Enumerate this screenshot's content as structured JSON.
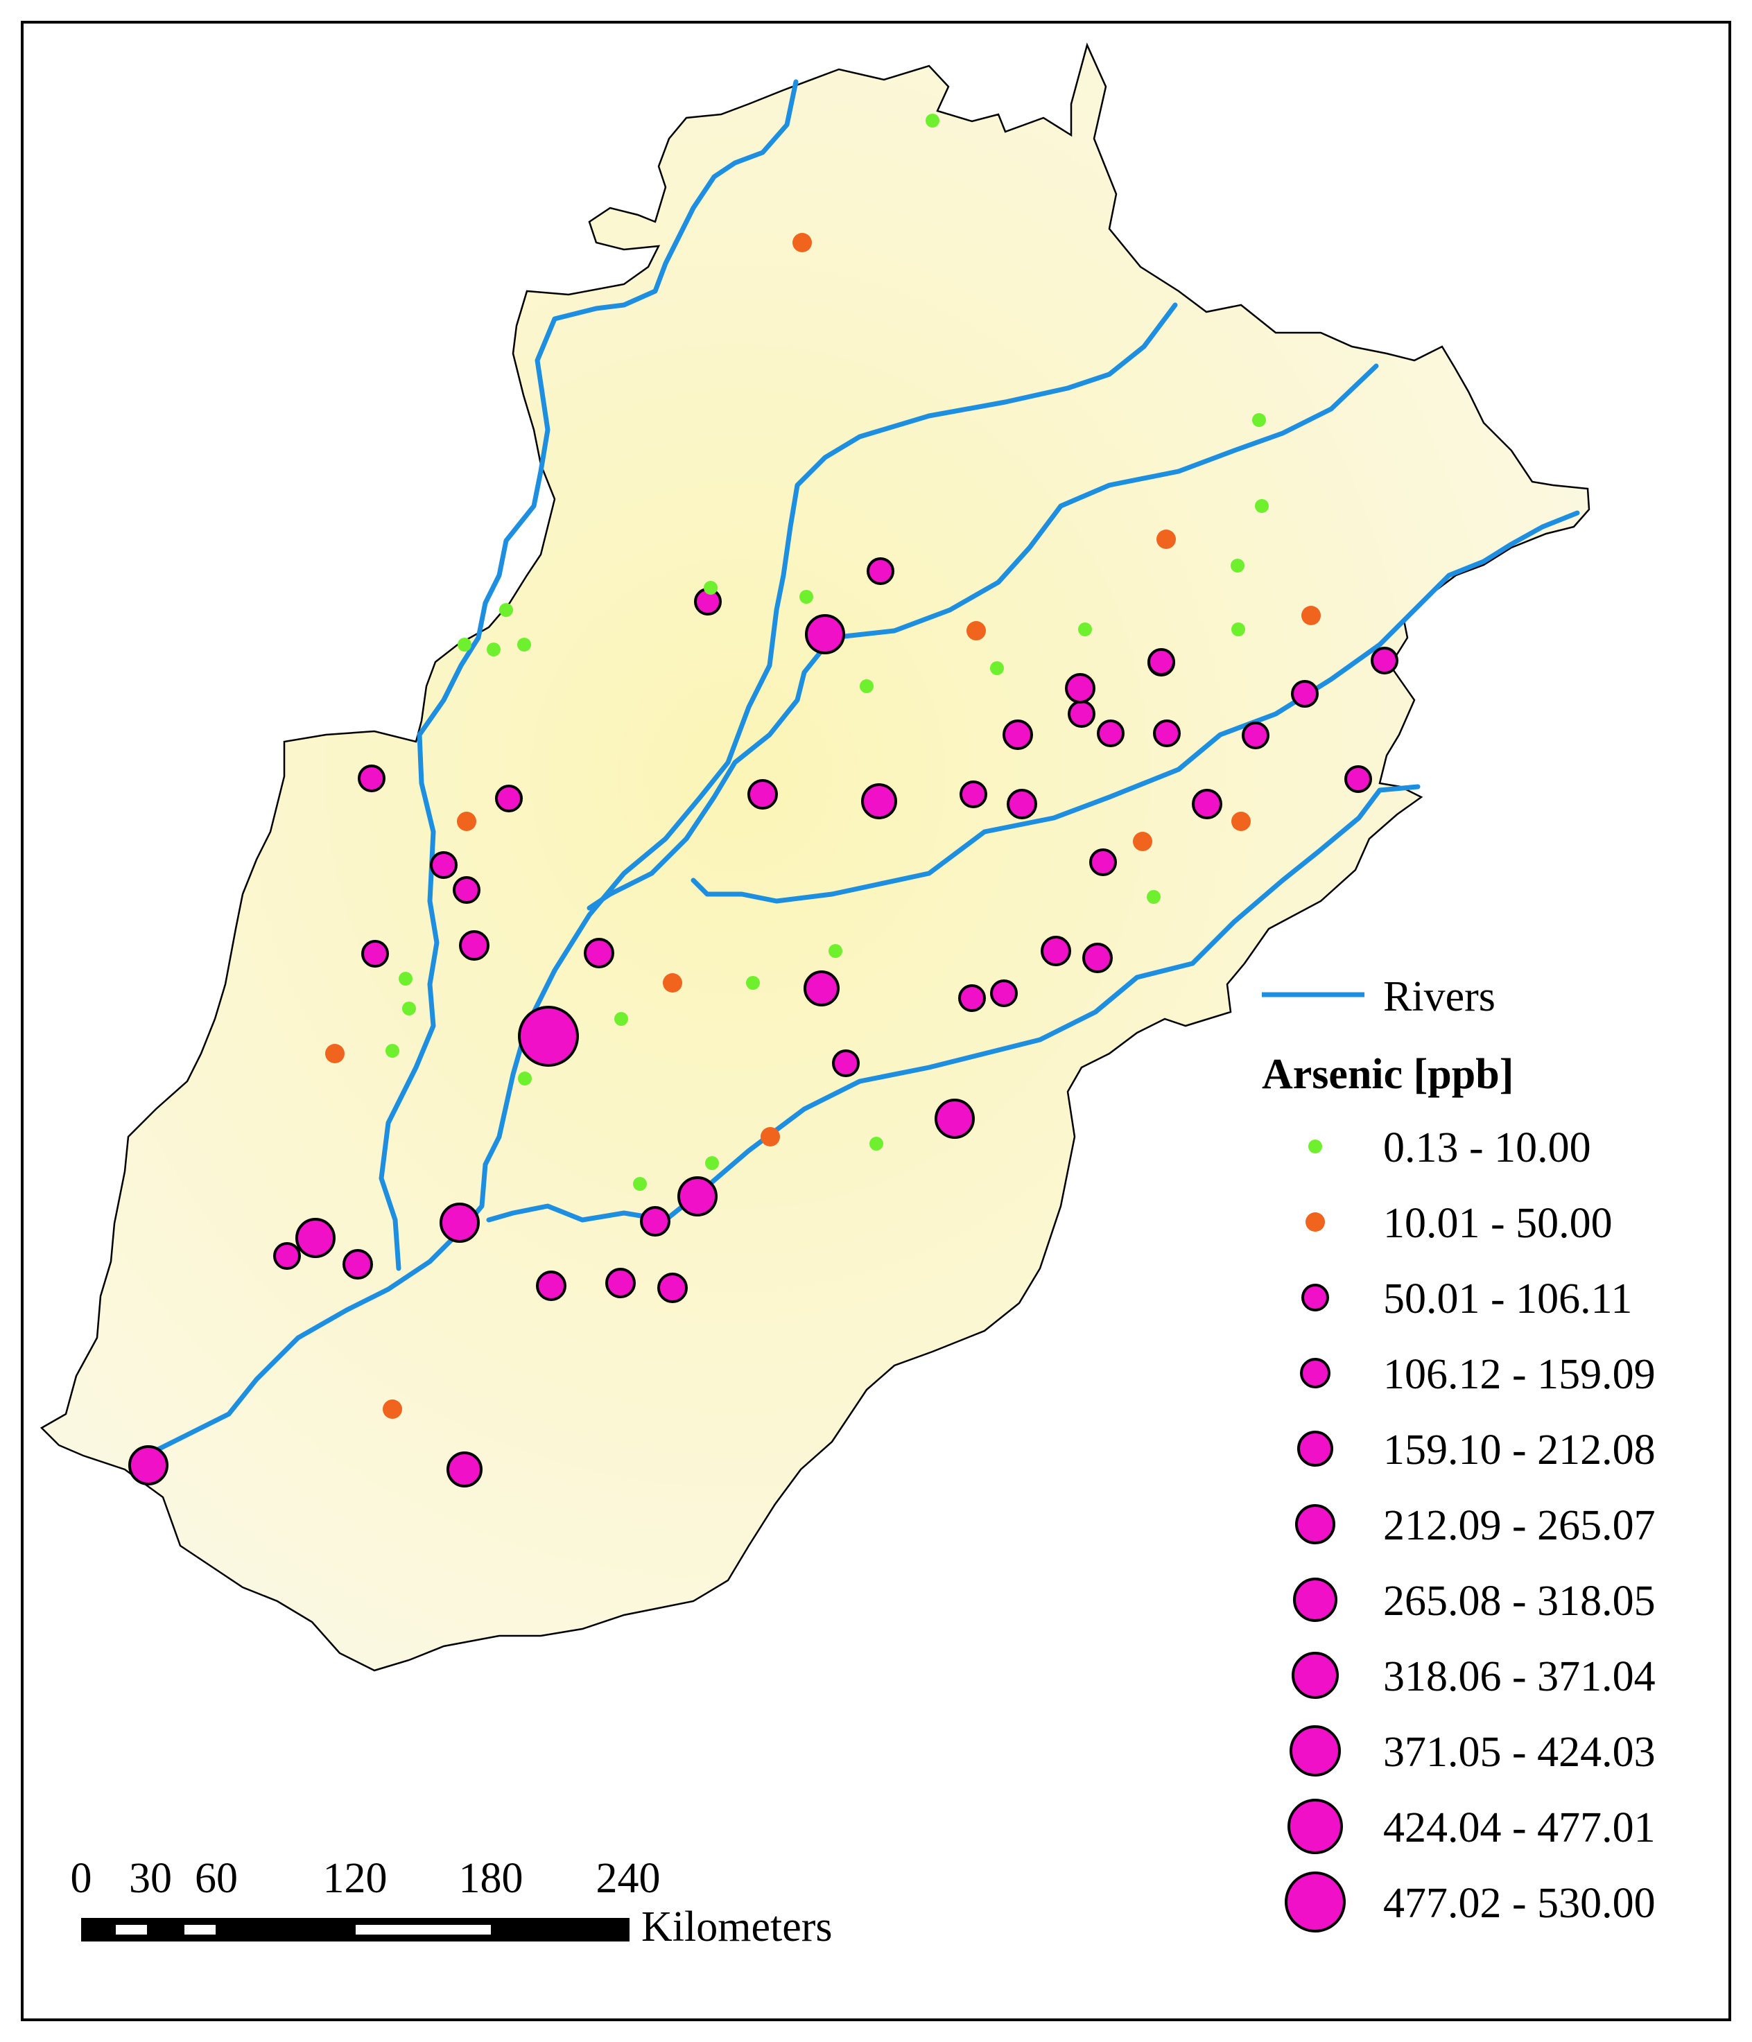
{
  "legend": {
    "rivers_label": "Rivers",
    "title": "Arsenic [ppb]",
    "classes": [
      "0.13 - 10.00",
      "10.01 - 50.00",
      "50.01 - 106.11",
      "106.12 - 159.09",
      "159.10 - 212.08",
      "212.09 - 265.07",
      "265.08 - 318.05",
      "318.06 - 371.04",
      "371.05 - 424.03",
      "424.04 - 477.01",
      "477.02 - 530.00"
    ]
  },
  "scalebar": {
    "ticks": [
      "0",
      "30",
      "60",
      "120",
      "180",
      "240"
    ],
    "unit": "Kilometers"
  },
  "colors": {
    "land": "#fbf8dc",
    "land_center": "#fbf5b8",
    "river": "#1e8ee0",
    "low": "#6ef02e",
    "medium": "#f0641e",
    "high": "#f010c8",
    "outline": "#000000"
  }
}
